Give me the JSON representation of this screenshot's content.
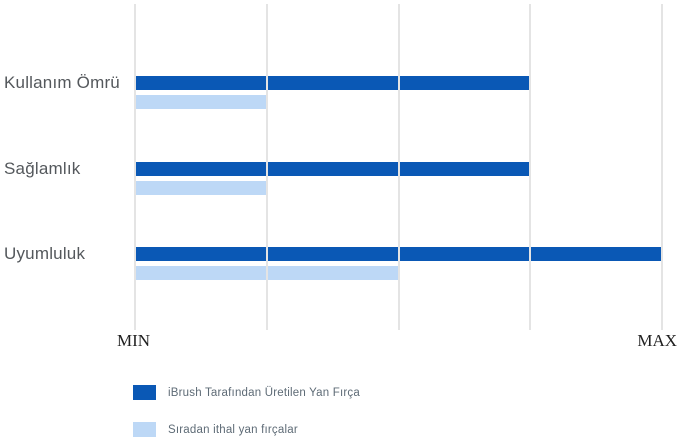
{
  "chart_data": {
    "type": "bar",
    "orientation": "horizontal",
    "title": "",
    "categories": [
      "Kullanım Ömrü",
      "Sağlamlık",
      "Uyumluluk"
    ],
    "series": [
      {
        "name": "iBrush Tarafından Üretilen Yan Fırça",
        "color": "#0a58b5",
        "values": [
          75,
          75,
          100
        ]
      },
      {
        "name": "Sıradan ithal yan fırçalar",
        "color": "#bdd8f6",
        "values": [
          25,
          25,
          50
        ]
      }
    ],
    "x_axis": {
      "min_label": "MIN",
      "max_label": "MAX",
      "range": [
        0,
        100
      ],
      "gridlines_percent": [
        0,
        25,
        50,
        75,
        100
      ]
    },
    "grid": true,
    "legend_position": "bottom-left",
    "colors": {
      "gridline": "#e4e4e4",
      "category_label": "#54585c",
      "axis_label": "#1f1f1f",
      "legend_label": "#5e6b76",
      "background": "#ffffff"
    }
  }
}
